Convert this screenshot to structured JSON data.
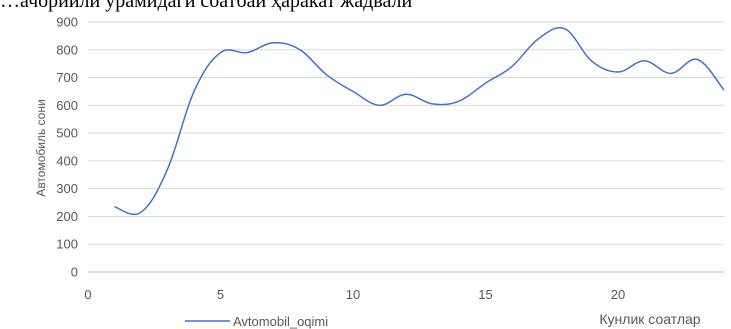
{
  "header": {
    "partial_text": "…ачорийли ўрамидаги соатбай ҳаракат жадвали"
  },
  "chart_data": {
    "type": "line",
    "title": "",
    "xlabel": "Кунлик соатлар",
    "ylabel": "Автомобиль сони",
    "xlim": [
      0,
      24
    ],
    "ylim": [
      0,
      900
    ],
    "xticks": [
      0,
      5,
      10,
      15,
      20
    ],
    "yticks": [
      0,
      100,
      200,
      300,
      400,
      500,
      600,
      700,
      800,
      900
    ],
    "grid": true,
    "legend_position": "bottom-left",
    "series": [
      {
        "name": "Avtomobil_oqimi",
        "color": "#4472c4",
        "x": [
          1,
          2,
          3,
          4,
          5,
          6,
          7,
          8,
          9,
          10,
          11,
          12,
          13,
          14,
          15,
          16,
          17,
          18,
          19,
          20,
          21,
          22,
          23,
          24
        ],
        "y": [
          235,
          215,
          370,
          650,
          790,
          790,
          825,
          800,
          710,
          650,
          600,
          640,
          605,
          615,
          680,
          740,
          840,
          875,
          760,
          720,
          760,
          715,
          765,
          655
        ]
      }
    ]
  }
}
